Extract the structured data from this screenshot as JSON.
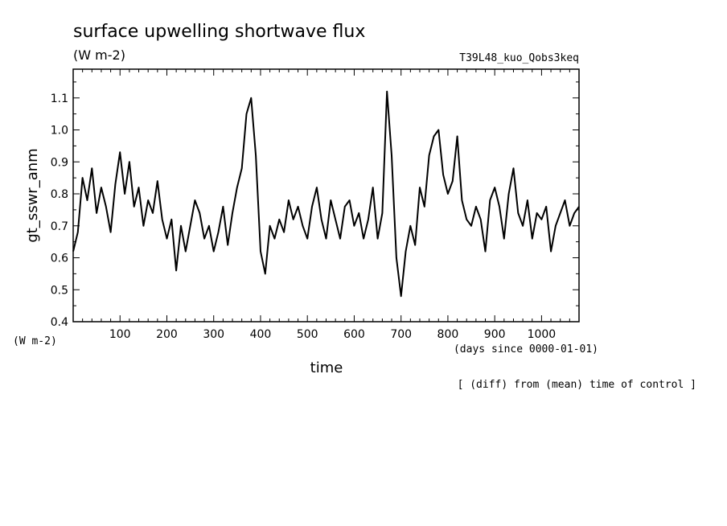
{
  "chart_data": {
    "type": "line",
    "title": "surface upwelling shortwave flux",
    "units": "(W m-2)",
    "experiment": "T39L48_kuo_Qobs3keq",
    "ylabel": "gt_sswr_anm",
    "ylabel_units": "(W m-2)",
    "xlabel": "time",
    "xlabel_units": "(days since 0000-01-01)",
    "note": "[ (diff) from (mean) time of control ]",
    "xlim": [
      0,
      1080
    ],
    "ylim": [
      0.4,
      1.19
    ],
    "x_ticks": [
      100,
      200,
      300,
      400,
      500,
      600,
      700,
      800,
      900,
      1000
    ],
    "x_tick_labels": [
      "100",
      "200",
      "300",
      "400",
      "500",
      "600",
      "700",
      "800",
      "900",
      "1000"
    ],
    "y_ticks": [
      0.4,
      0.5,
      0.6,
      0.7,
      0.8,
      0.9,
      1.0,
      1.1
    ],
    "y_tick_labels": [
      "0.4",
      "0.5",
      "0.6",
      "0.7",
      "0.8",
      "0.9",
      "1.0",
      "1.1"
    ],
    "grid": false,
    "series": [
      {
        "x": [
          0,
          10,
          20,
          30,
          40,
          50,
          60,
          70,
          80,
          90,
          100,
          110,
          120,
          130,
          140,
          150,
          160,
          170,
          180,
          190,
          200,
          210,
          220,
          230,
          240,
          250,
          260,
          270,
          280,
          290,
          300,
          310,
          320,
          330,
          340,
          350,
          360,
          370,
          380,
          390,
          400,
          410,
          420,
          430,
          440,
          450,
          460,
          470,
          480,
          490,
          500,
          510,
          520,
          530,
          540,
          550,
          560,
          570,
          580,
          590,
          600,
          610,
          620,
          630,
          640,
          650,
          660,
          670,
          680,
          690,
          700,
          710,
          720,
          730,
          740,
          750,
          760,
          770,
          780,
          790,
          800,
          810,
          820,
          830,
          840,
          850,
          860,
          870,
          880,
          890,
          900,
          910,
          920,
          930,
          940,
          950,
          960,
          970,
          980,
          990,
          1000,
          1010,
          1020,
          1030,
          1040,
          1050,
          1060,
          1070,
          1080
        ],
        "values": [
          0.62,
          0.68,
          0.85,
          0.78,
          0.88,
          0.74,
          0.82,
          0.76,
          0.68,
          0.83,
          0.93,
          0.8,
          0.9,
          0.76,
          0.82,
          0.7,
          0.78,
          0.74,
          0.84,
          0.72,
          0.66,
          0.72,
          0.56,
          0.7,
          0.62,
          0.7,
          0.78,
          0.74,
          0.66,
          0.7,
          0.62,
          0.68,
          0.76,
          0.64,
          0.74,
          0.82,
          0.88,
          1.05,
          1.1,
          0.92,
          0.62,
          0.55,
          0.7,
          0.66,
          0.72,
          0.68,
          0.78,
          0.72,
          0.76,
          0.7,
          0.66,
          0.76,
          0.82,
          0.72,
          0.66,
          0.78,
          0.72,
          0.66,
          0.76,
          0.78,
          0.7,
          0.74,
          0.66,
          0.72,
          0.82,
          0.66,
          0.74,
          1.12,
          0.92,
          0.6,
          0.48,
          0.62,
          0.7,
          0.64,
          0.82,
          0.76,
          0.92,
          0.98,
          1.0,
          0.86,
          0.8,
          0.84,
          0.98,
          0.78,
          0.72,
          0.7,
          0.76,
          0.72,
          0.62,
          0.78,
          0.82,
          0.76,
          0.66,
          0.8,
          0.88,
          0.74,
          0.7,
          0.78,
          0.66,
          0.74,
          0.72,
          0.76,
          0.62,
          0.7,
          0.74,
          0.78,
          0.7,
          0.74,
          0.76
        ]
      }
    ]
  }
}
